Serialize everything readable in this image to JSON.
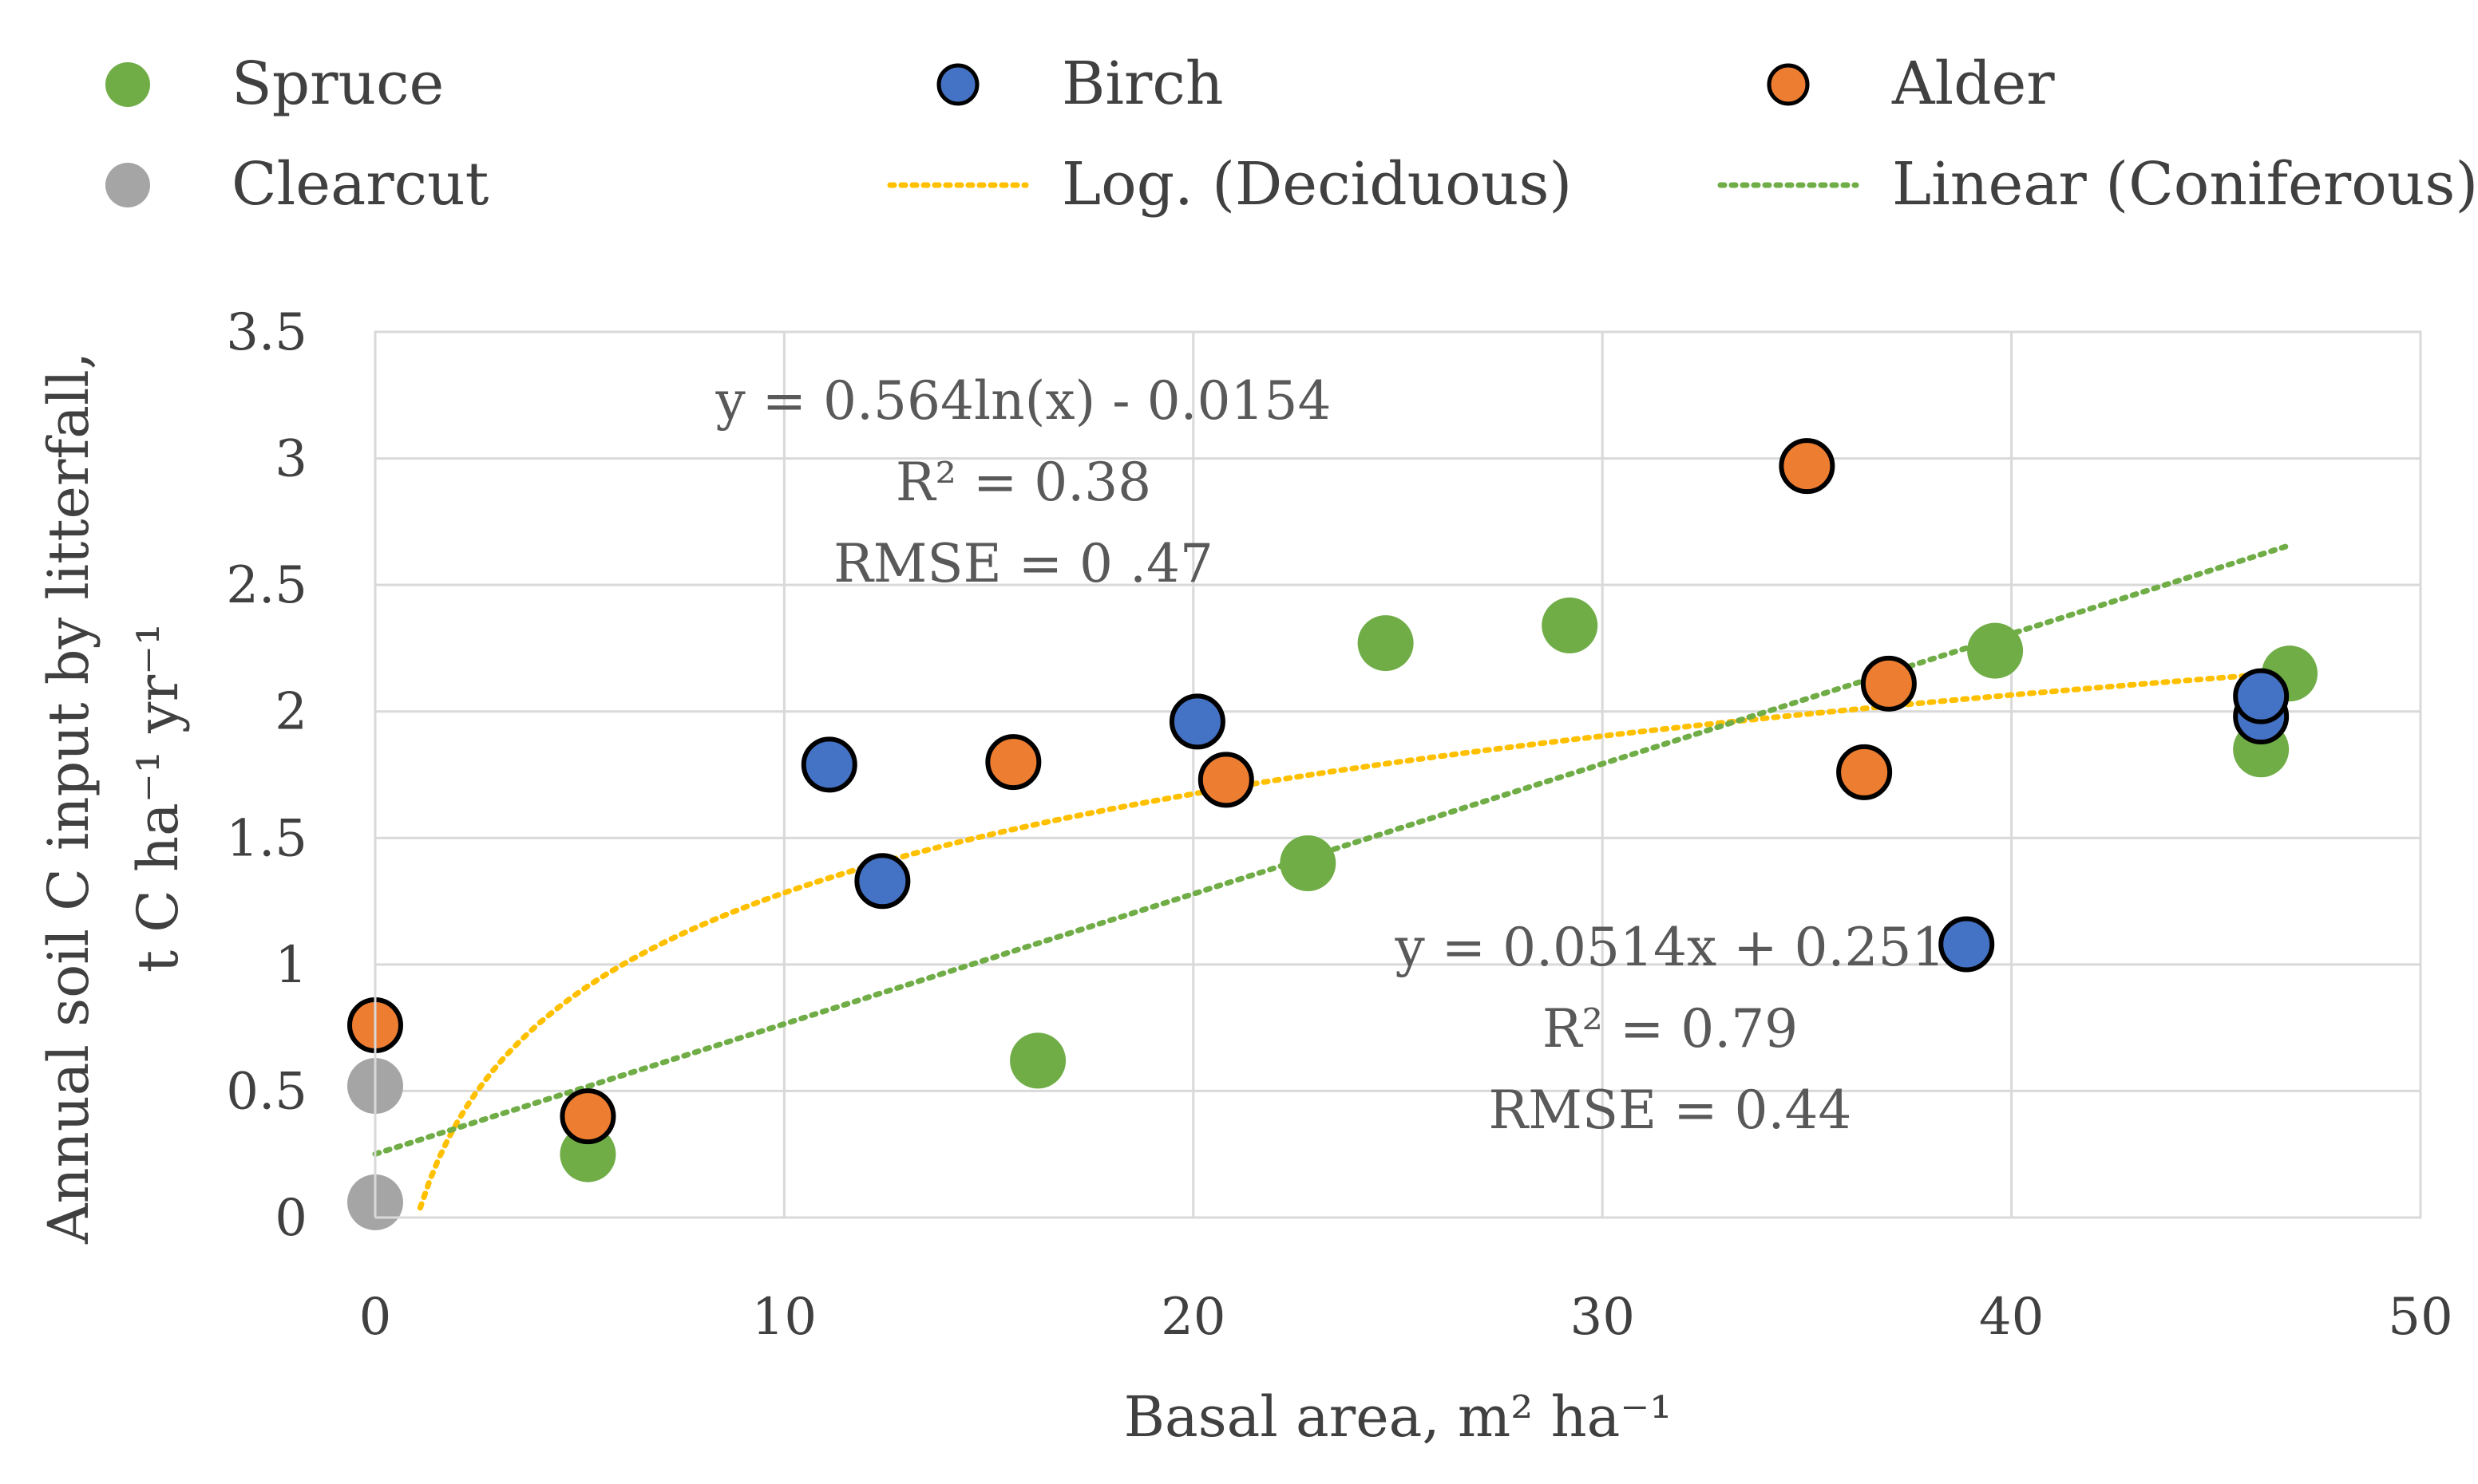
{
  "chart_data": {
    "type": "scatter",
    "title": "",
    "xlabel": "Basal area, m² ha⁻¹",
    "ylabel_lines": [
      "Annual soil C input by litterfall,",
      "t C ha⁻¹ yr⁻¹"
    ],
    "xlim": [
      0,
      50
    ],
    "ylim": [
      0,
      3.5
    ],
    "x_ticks": [
      0,
      10,
      20,
      30,
      40,
      50
    ],
    "y_ticks": [
      0,
      0.5,
      1,
      1.5,
      2,
      2.5,
      3,
      3.5
    ],
    "x_tick_labels": [
      "0",
      "10",
      "20",
      "30",
      "40",
      "50"
    ],
    "y_tick_labels": [
      "0",
      "0.5",
      "1",
      "1.5",
      "2",
      "2.5",
      "3",
      "3.5"
    ],
    "grid": true,
    "legend_position": "top",
    "series": [
      {
        "name": "Spruce",
        "color": "#70ad47",
        "outlined": false,
        "points": [
          [
            5.2,
            0.25
          ],
          [
            16.2,
            0.62
          ],
          [
            22.8,
            1.4
          ],
          [
            24.7,
            2.27
          ],
          [
            29.2,
            2.34
          ],
          [
            39.6,
            2.24
          ],
          [
            46.1,
            1.85
          ],
          [
            46.8,
            2.15
          ]
        ]
      },
      {
        "name": "Birch",
        "color": "#4472c4",
        "outlined": true,
        "points": [
          [
            11.1,
            1.79
          ],
          [
            12.4,
            1.33
          ],
          [
            20.1,
            1.96
          ],
          [
            38.9,
            1.08
          ],
          [
            46.1,
            1.98
          ],
          [
            46.1,
            2.06
          ]
        ]
      },
      {
        "name": "Alder",
        "color": "#ed7d31",
        "outlined": true,
        "points": [
          [
            0.0,
            0.76
          ],
          [
            5.2,
            0.4
          ],
          [
            15.6,
            1.8
          ],
          [
            20.8,
            1.73
          ],
          [
            35.0,
            2.97
          ],
          [
            36.4,
            1.76
          ],
          [
            37.0,
            2.11
          ]
        ]
      },
      {
        "name": "Clearcut",
        "color": "#a5a5a5",
        "outlined": false,
        "points": [
          [
            0.0,
            0.52
          ],
          [
            0.0,
            0.06
          ]
        ]
      }
    ],
    "trendlines": [
      {
        "name": "Log. (Deciduous)",
        "kind": "log",
        "a": 0.564,
        "b": -0.0154,
        "x_range": [
          1.1,
          46.1
        ],
        "color": "#ffc000"
      },
      {
        "name": "Linear (Coniferous)",
        "kind": "linear",
        "a": 0.0514,
        "b": 0.251,
        "x_range": [
          0,
          46.8
        ],
        "color": "#70ad47"
      }
    ],
    "annotations": [
      {
        "id": "deciduous",
        "lines": [
          "y = 0.564ln(x) - 0.0154",
          "R² = 0.38",
          "RMSE = 0 .47"
        ]
      },
      {
        "id": "coniferous",
        "lines": [
          "y = 0.0514x + 0.251",
          "R² = 0.79",
          "RMSE = 0.44"
        ]
      }
    ]
  },
  "legend": {
    "items": [
      {
        "name": "Spruce",
        "kind": "marker",
        "color": "#70ad47",
        "outlined": false
      },
      {
        "name": "Birch",
        "kind": "marker",
        "color": "#4472c4",
        "outlined": true
      },
      {
        "name": "Alder",
        "kind": "marker",
        "color": "#ed7d31",
        "outlined": true
      },
      {
        "name": "Clearcut",
        "kind": "marker",
        "color": "#a5a5a5",
        "outlined": false
      },
      {
        "name": "Log. (Deciduous)",
        "kind": "line",
        "color": "#ffc000",
        "outlined": false
      },
      {
        "name": "Linear (Coniferous)",
        "kind": "line",
        "color": "#70ad47",
        "outlined": false
      }
    ]
  }
}
